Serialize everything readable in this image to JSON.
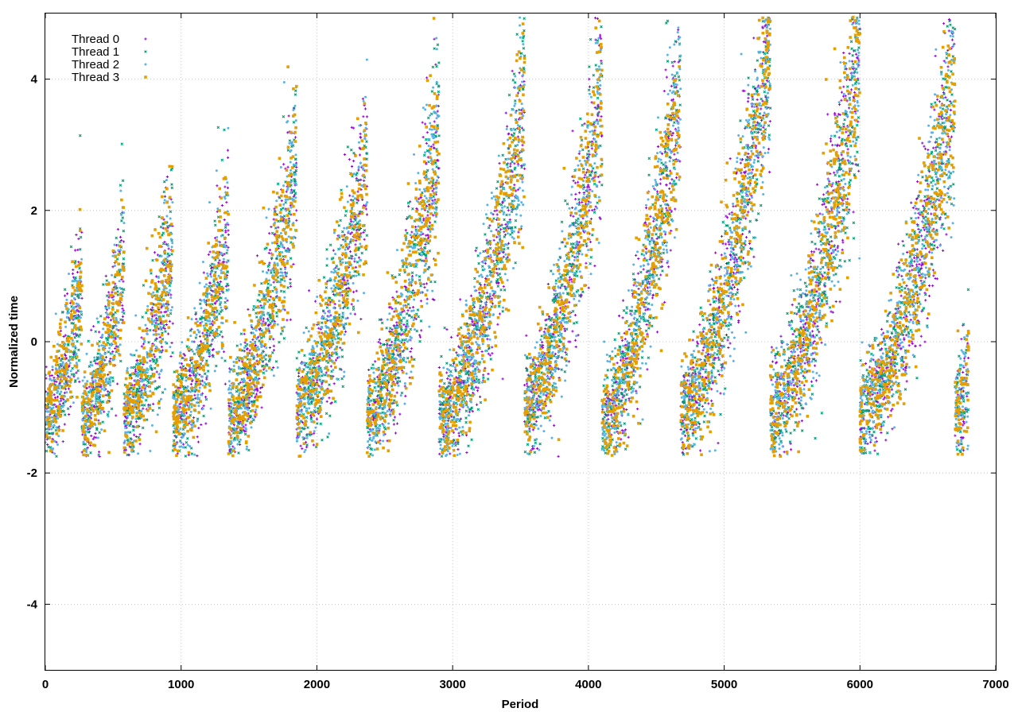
{
  "chart_data": {
    "type": "scatter",
    "xlabel": "Period",
    "ylabel": "Normalized time",
    "xlim": [
      0,
      7000
    ],
    "ylim": [
      -5,
      5
    ],
    "x_ticks": [
      0,
      1000,
      2000,
      3000,
      4000,
      5000,
      6000,
      7000
    ],
    "y_ticks": [
      -4,
      -2,
      0,
      2,
      4
    ],
    "x_tick_labels": [
      "0",
      "1000",
      "2000",
      "3000",
      "4000",
      "5000",
      "6000",
      "7000"
    ],
    "y_tick_labels": [
      "-4",
      "-2",
      "0",
      "2",
      "4"
    ],
    "grid": true,
    "legend_position": "top-left",
    "series": [
      {
        "name": "Thread 0",
        "color": "#9400d3",
        "marker": "plus"
      },
      {
        "name": "Thread 1",
        "color": "#009e73",
        "marker": "cross"
      },
      {
        "name": "Thread 2",
        "color": "#56b4e9",
        "marker": "asterisk"
      },
      {
        "name": "Thread 3",
        "color": "#e69f00",
        "marker": "square"
      }
    ],
    "cycles": [
      {
        "start": 0,
        "end": 270,
        "y_start": -1.1,
        "y_end": 0.9,
        "spread": 0.85
      },
      {
        "start": 270,
        "end": 580,
        "y_start": -1.2,
        "y_end": 1.2,
        "spread": 0.9
      },
      {
        "start": 580,
        "end": 940,
        "y_start": -1.1,
        "y_end": 1.6,
        "spread": 0.95
      },
      {
        "start": 940,
        "end": 1350,
        "y_start": -1.1,
        "y_end": 1.7,
        "spread": 1.0
      },
      {
        "start": 1350,
        "end": 1850,
        "y_start": -1.2,
        "y_end": 2.8,
        "spread": 1.05
      },
      {
        "start": 1850,
        "end": 2370,
        "y_start": -1.0,
        "y_end": 2.7,
        "spread": 1.05
      },
      {
        "start": 2370,
        "end": 2900,
        "y_start": -1.1,
        "y_end": 3.3,
        "spread": 1.1
      },
      {
        "start": 2900,
        "end": 3530,
        "y_start": -1.2,
        "y_end": 3.6,
        "spread": 1.1
      },
      {
        "start": 3530,
        "end": 4100,
        "y_start": -1.0,
        "y_end": 3.8,
        "spread": 1.1
      },
      {
        "start": 4100,
        "end": 4680,
        "y_start": -1.2,
        "y_end": 3.9,
        "spread": 1.1
      },
      {
        "start": 4680,
        "end": 5340,
        "y_start": -1.1,
        "y_end": 4.5,
        "spread": 1.2
      },
      {
        "start": 5340,
        "end": 6000,
        "y_start": -1.1,
        "y_end": 4.3,
        "spread": 1.2
      },
      {
        "start": 6000,
        "end": 6700,
        "y_start": -1.1,
        "y_end": 3.9,
        "spread": 1.15
      },
      {
        "start": 6700,
        "end": 6800,
        "y_start": -1.1,
        "y_end": -0.6,
        "spread": 0.8
      }
    ],
    "points_per_series_per_period": 0.55
  }
}
